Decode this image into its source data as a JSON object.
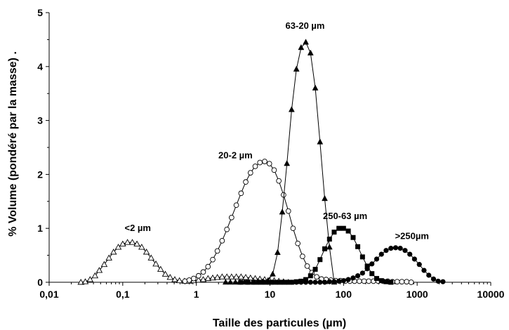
{
  "chart_data": {
    "type": "scatter",
    "xlabel": "Taille des particules (µm)",
    "ylabel": "% Volume (pondéré par la masse) .",
    "x_scale": "log",
    "xlim": [
      0.01,
      10000
    ],
    "ylim": [
      0,
      5
    ],
    "x_tick_labels": [
      "0,01",
      "0,1",
      "1",
      "10",
      "100",
      "1000",
      "10000"
    ],
    "y_tick_labels": [
      "0",
      "1",
      "2",
      "3",
      "4",
      "5"
    ],
    "grid": false,
    "legend": "none",
    "series": [
      {
        "name": "<2 µm",
        "marker": "open-triangle",
        "label_at": [
          0.16,
          0.95
        ],
        "x": [
          0.027,
          0.031,
          0.036,
          0.042,
          0.048,
          0.056,
          0.065,
          0.075,
          0.087,
          0.1,
          0.116,
          0.135,
          0.156,
          0.181,
          0.21,
          0.243,
          0.282,
          0.327,
          0.379,
          0.44,
          0.51,
          0.59,
          0.69,
          0.8,
          0.92,
          1.07,
          1.24,
          1.44,
          1.67,
          1.93,
          2.24,
          2.6,
          3.01,
          3.49,
          4.05,
          4.69,
          5.44,
          6.31,
          7.31,
          8.48,
          9.83,
          11.4,
          13.2,
          15.3,
          17.8
        ],
        "y": [
          0.0,
          0.01,
          0.05,
          0.12,
          0.22,
          0.33,
          0.45,
          0.56,
          0.65,
          0.71,
          0.74,
          0.74,
          0.71,
          0.65,
          0.56,
          0.45,
          0.34,
          0.24,
          0.15,
          0.09,
          0.05,
          0.03,
          0.02,
          0.02,
          0.03,
          0.04,
          0.05,
          0.07,
          0.08,
          0.09,
          0.1,
          0.1,
          0.1,
          0.1,
          0.1,
          0.09,
          0.08,
          0.07,
          0.06,
          0.05,
          0.04,
          0.03,
          0.02,
          0.01,
          0.0
        ]
      },
      {
        "name": "20-2 µm",
        "marker": "open-circle",
        "label_at": [
          3.4,
          2.3
        ],
        "x": [
          0.7,
          0.8,
          0.92,
          1.07,
          1.24,
          1.44,
          1.67,
          1.93,
          2.24,
          2.6,
          3.01,
          3.49,
          4.05,
          4.69,
          5.44,
          6.31,
          7.31,
          8.48,
          9.83,
          11.4,
          13.2,
          15.3,
          17.8,
          20.6,
          23.9,
          27.7,
          32.1,
          37.2,
          43.2,
          50.1,
          58.0,
          67.3,
          78.0,
          90.5,
          105,
          122,
          141,
          164,
          190,
          220,
          255,
          296,
          343,
          398,
          461,
          535,
          620,
          720,
          830
        ],
        "y": [
          0.02,
          0.04,
          0.07,
          0.12,
          0.19,
          0.29,
          0.42,
          0.58,
          0.77,
          0.98,
          1.2,
          1.43,
          1.65,
          1.86,
          2.03,
          2.15,
          2.22,
          2.24,
          2.2,
          2.08,
          1.88,
          1.62,
          1.32,
          1.0,
          0.72,
          0.48,
          0.3,
          0.18,
          0.1,
          0.06,
          0.05,
          0.04,
          0.03,
          0.03,
          0.02,
          0.02,
          0.02,
          0.02,
          0.02,
          0.02,
          0.02,
          0.02,
          0.02,
          0.02,
          0.01,
          0.01,
          0.01,
          0.01,
          0.0
        ]
      },
      {
        "name": "63-20 µm",
        "marker": "filled-triangle",
        "label_at": [
          30,
          4.7
        ],
        "x": [
          2.5,
          2.9,
          3.4,
          3.9,
          4.5,
          5.2,
          6.1,
          7.0,
          8.1,
          9.4,
          10.9,
          12.7,
          14.7,
          17.0,
          19.7,
          22.9,
          26.5,
          30.7,
          35.6,
          41.3,
          47.9,
          55.5,
          64.4,
          74.6
        ],
        "y": [
          0.0,
          0.0,
          0.0,
          0.0,
          0.0,
          0.0,
          0.0,
          0.0,
          0.01,
          0.03,
          0.15,
          0.55,
          1.3,
          2.2,
          3.2,
          3.95,
          4.35,
          4.45,
          4.25,
          3.6,
          2.6,
          1.55,
          0.65,
          0.0
        ]
      },
      {
        "name": "250-63 µm",
        "marker": "filled-square",
        "label_at": [
          105,
          1.17
        ],
        "x": [
          4.0,
          5.0,
          6.0,
          7.0,
          8.1,
          9.4,
          10.9,
          12.7,
          14.7,
          17.0,
          19.7,
          22.9,
          26.5,
          30.7,
          35.6,
          41.3,
          47.9,
          55.5,
          64.4,
          74.6,
          86.5,
          100,
          116,
          135,
          156,
          181,
          210,
          243,
          282,
          327,
          379,
          440
        ],
        "y": [
          0.0,
          0.0,
          0.0,
          0.0,
          0.0,
          0.0,
          0.0,
          0.0,
          0.0,
          0.0,
          0.0,
          0.01,
          0.02,
          0.05,
          0.12,
          0.24,
          0.42,
          0.62,
          0.8,
          0.93,
          1.0,
          1.0,
          0.95,
          0.83,
          0.66,
          0.47,
          0.3,
          0.16,
          0.07,
          0.03,
          0.01,
          0.0
        ]
      },
      {
        "name": ">250µm",
        "marker": "filled-circle",
        "label_at": [
          850,
          0.8
        ],
        "x": [
          4.0,
          5.0,
          6.0,
          7.0,
          8.1,
          9.4,
          10.9,
          12.7,
          14.7,
          17.0,
          19.7,
          22.9,
          26.5,
          30.7,
          35.6,
          41.3,
          47.9,
          55.5,
          64.4,
          74.6,
          86.5,
          100,
          116,
          135,
          156,
          181,
          210,
          243,
          282,
          327,
          379,
          440,
          510,
          590,
          685,
          795,
          920,
          1070,
          1240,
          1440,
          1670,
          1930,
          2240
        ],
        "y": [
          0.0,
          0.0,
          0.0,
          0.0,
          0.0,
          0.0,
          0.0,
          0.0,
          0.0,
          0.0,
          0.0,
          0.0,
          0.0,
          0.0,
          0.0,
          0.0,
          0.0,
          0.0,
          0.01,
          0.01,
          0.02,
          0.03,
          0.05,
          0.08,
          0.12,
          0.17,
          0.25,
          0.34,
          0.43,
          0.52,
          0.59,
          0.63,
          0.64,
          0.63,
          0.59,
          0.52,
          0.43,
          0.33,
          0.22,
          0.13,
          0.06,
          0.02,
          0.01
        ]
      }
    ]
  }
}
